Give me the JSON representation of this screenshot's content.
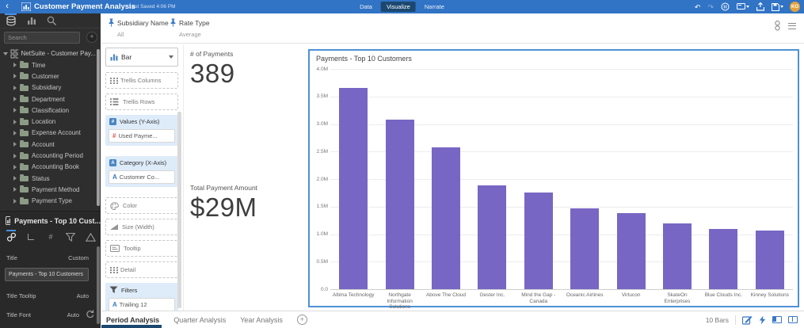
{
  "colors": {
    "top_bar": "#3173C5",
    "accent_blue": "#4A90E2",
    "selected_border": "#4D91D8",
    "bar_fill": "#7866C4",
    "sidebar_bg": "#2E2E2E",
    "active_nav_bg": "#1C4870",
    "avatar_bg": "#E2A23B"
  },
  "icons": {
    "back": "‹",
    "undo": "↶",
    "redo": "↷",
    "plus": "+",
    "hash": "#",
    "letter_a": "A",
    "avatar": "KO"
  },
  "top_bar": {
    "app_title": "Customer Payment Analysis",
    "last_saved": "Last Saved 4:06 PM",
    "nav": [
      {
        "label": "Data",
        "active": false
      },
      {
        "label": "Visualize",
        "active": true
      },
      {
        "label": "Narrate",
        "active": false
      }
    ],
    "avatar_initials": "KO"
  },
  "sidebar": {
    "search_placeholder": "Search",
    "tree_root": "NetSuite - Customer Pay...",
    "tree_items": [
      "Time",
      "Customer",
      "Subsidiary",
      "Department",
      "Classification",
      "Location",
      "Expense Account",
      "Account",
      "Accounting Period",
      "Accounting Book",
      "Status",
      "Payment Method",
      "Payment Type"
    ],
    "properties": {
      "header": "Payments - Top 10 Cust...",
      "title_label": "Title",
      "title_value": "Custom",
      "title_input": "Payments - Top 10 Customers",
      "tooltip_label": "Title Tooltip",
      "tooltip_value": "Auto",
      "font_label": "Title Font",
      "font_value": "Auto"
    }
  },
  "filter_bar": {
    "filters": [
      {
        "name": "Subsidiary Name",
        "value": "All"
      },
      {
        "name": "Rate Type",
        "value": "Average"
      }
    ]
  },
  "grammar": {
    "chart_type": "Bar",
    "trellis_columns": "Trellis Columns",
    "trellis_rows": "Trellis Rows",
    "values_header": "Values (Y-Axis)",
    "values_field": "Used Payme...",
    "category_header": "Category (X-Axis)",
    "category_field": "Customer Co...",
    "color": "Color",
    "size": "Size (Width)",
    "tooltip": "Tooltip",
    "detail": "Detail",
    "filters_header": "Filters",
    "filters_field": "Trailing 12"
  },
  "kpis": [
    {
      "label": "# of Payments",
      "value": "389"
    },
    {
      "label": "Total Payment Amount",
      "value": "$29M"
    }
  ],
  "chart_data": {
    "type": "bar",
    "title": "Payments - Top 10 Customers",
    "categories": [
      "Altima Technology",
      "Northgate Information Solutions",
      "Above The Cloud",
      "Gester Inc.",
      "Mind the Gap - Canada",
      "Oceanic Airlines",
      "Virtucon",
      "SkateOn Enterprises",
      "Blue Clouds Inc.",
      "Kinney Solutions"
    ],
    "values": [
      3.65,
      3.08,
      2.57,
      1.88,
      1.76,
      1.47,
      1.38,
      1.19,
      1.1,
      1.06
    ],
    "value_unit": "M",
    "xlabel": "",
    "ylabel": "",
    "ylim": [
      0,
      4.0
    ],
    "yticks": [
      "4.0M",
      "3.5M",
      "3.0M",
      "2.5M",
      "2.0M",
      "1.5M",
      "1.0M",
      "0.5M",
      "0.0"
    ],
    "grid": true,
    "legend": "none",
    "bar_color": "#7866C4"
  },
  "bottom_bar": {
    "tabs": [
      {
        "label": "Period Analysis",
        "active": true
      },
      {
        "label": "Quarter Analysis",
        "active": false
      },
      {
        "label": "Year Analysis",
        "active": false
      }
    ],
    "bars_count": "10 Bars"
  }
}
